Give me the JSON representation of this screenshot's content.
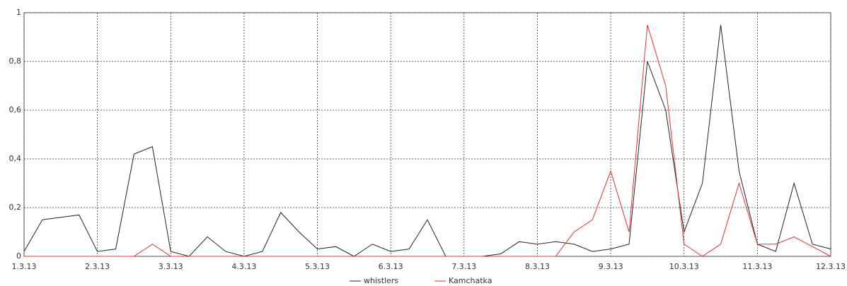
{
  "chart_data": {
    "type": "line",
    "x": [
      0,
      0.25,
      0.5,
      0.75,
      1,
      1.25,
      1.5,
      1.75,
      2,
      2.25,
      2.5,
      2.75,
      3,
      3.25,
      3.5,
      3.75,
      4,
      4.25,
      4.5,
      4.75,
      5,
      5.25,
      5.5,
      5.75,
      6,
      6.25,
      6.5,
      6.75,
      7,
      7.25,
      7.5,
      7.75,
      8,
      8.25,
      8.5,
      8.75,
      9,
      9.25,
      9.5,
      9.75,
      10,
      10.25,
      10.5,
      10.75,
      11
    ],
    "series": [
      {
        "name": "whistlers",
        "color": "#222222",
        "values": [
          0.02,
          0.15,
          0.16,
          0.17,
          0.02,
          0.03,
          0.42,
          0.45,
          0.02,
          0,
          0.08,
          0.02,
          0,
          0.02,
          0.18,
          0.1,
          0.03,
          0.04,
          0,
          0.05,
          0.02,
          0.03,
          0.15,
          0,
          0,
          0,
          0.01,
          0.06,
          0.05,
          0.06,
          0.05,
          0.02,
          0.03,
          0.05,
          0.8,
          0.6,
          0.1,
          0.3,
          0.95,
          0.35,
          0.05,
          0.02,
          0.3,
          0.05,
          0.03
        ]
      },
      {
        "name": "Kamchatka",
        "color": "#e03030",
        "values": [
          0,
          0,
          0,
          0,
          0,
          0,
          0,
          0.05,
          0,
          0,
          0,
          0,
          0,
          0,
          0,
          0,
          0,
          0,
          0,
          0,
          0,
          0,
          0,
          0,
          0,
          0,
          0,
          0,
          0,
          0,
          0.1,
          0.15,
          0.35,
          0.1,
          0.95,
          0.7,
          0.05,
          0,
          0.05,
          0.3,
          0.05,
          0.05,
          0.08,
          0.04,
          0
        ]
      }
    ],
    "xlim": [
      0,
      11
    ],
    "xticks": [
      {
        "value": 0,
        "label": "1.3.13"
      },
      {
        "value": 1,
        "label": "2.3.13"
      },
      {
        "value": 2,
        "label": "3.3.13"
      },
      {
        "value": 3,
        "label": "4.3.13"
      },
      {
        "value": 4,
        "label": "5.3.13"
      },
      {
        "value": 5,
        "label": "6.3.13"
      },
      {
        "value": 6,
        "label": "7.3.13"
      },
      {
        "value": 7,
        "label": "8.3.13"
      },
      {
        "value": 8,
        "label": "9.3.13"
      },
      {
        "value": 9,
        "label": "10.3.13"
      },
      {
        "value": 10,
        "label": "11.3.13"
      },
      {
        "value": 11,
        "label": "12.3.13"
      }
    ],
    "ylim": [
      0,
      1
    ],
    "yticks": [
      0,
      {
        "value": 0.2,
        "label": "0,2"
      },
      {
        "value": 0.4,
        "label": "0,4"
      },
      {
        "value": 0.6,
        "label": "0,6"
      },
      {
        "value": 0.8,
        "label": "0,8"
      },
      1
    ],
    "grid": true,
    "legend": "bottom"
  }
}
